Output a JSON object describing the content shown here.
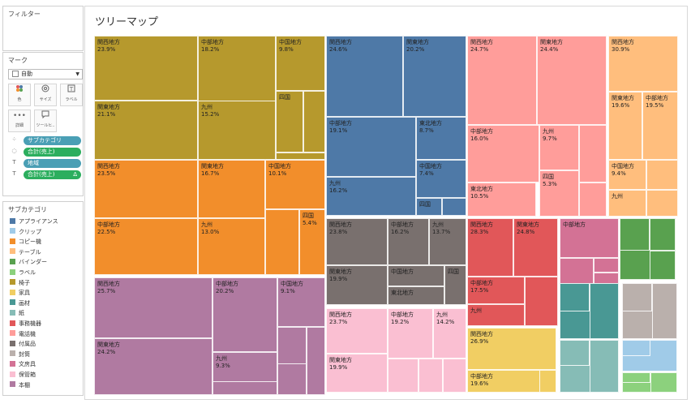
{
  "filters": {
    "title": "フィルター"
  },
  "marks": {
    "title": "マーク",
    "mark_type": "自動",
    "buttons": {
      "color": "色",
      "size": "サイズ",
      "label": "ラベル",
      "detail": "詳細",
      "tooltip": "ツールヒ.."
    },
    "pills": [
      {
        "label": "サブカテゴリ",
        "color": "#4a9fb5"
      },
      {
        "label": "合計(売上)",
        "color": "#2cae5e"
      },
      {
        "label": "地域",
        "color": "#4a9fb5"
      },
      {
        "label": "合計(売上)",
        "color": "#2cae5e"
      }
    ]
  },
  "legend": {
    "title": "サブカテゴリ",
    "items": [
      {
        "label": "アプライアンス",
        "color": "#4e79a7"
      },
      {
        "label": "クリップ",
        "color": "#a0cbe8"
      },
      {
        "label": "コピー機",
        "color": "#f28e2b"
      },
      {
        "label": "テーブル",
        "color": "#ffbe7d"
      },
      {
        "label": "バインダー",
        "color": "#59a14f"
      },
      {
        "label": "ラベル",
        "color": "#8cd17d"
      },
      {
        "label": "椅子",
        "color": "#b6992d"
      },
      {
        "label": "家具",
        "color": "#f1ce63"
      },
      {
        "label": "画材",
        "color": "#499894"
      },
      {
        "label": "紙",
        "color": "#86bcb6"
      },
      {
        "label": "事務機器",
        "color": "#e15759"
      },
      {
        "label": "電話機",
        "color": "#ff9d9a"
      },
      {
        "label": "付属品",
        "color": "#79706e"
      },
      {
        "label": "封筒",
        "color": "#bab0ac"
      },
      {
        "label": "文房具",
        "color": "#d37295"
      },
      {
        "label": "保管箱",
        "color": "#fabfd2"
      },
      {
        "label": "本棚",
        "color": "#b07aa1"
      }
    ]
  },
  "viz": {
    "title": "ツリーマップ",
    "cells": [
      {
        "name": "関西地方",
        "pct": "23.9%",
        "color": "#b6992d"
      },
      {
        "name": "関東地方",
        "pct": "21.1%",
        "color": "#b6992d"
      },
      {
        "name": "中部地方",
        "pct": "18.2%",
        "color": "#b6992d"
      },
      {
        "name": "九州",
        "pct": "15.2%",
        "color": "#b6992d"
      },
      {
        "name": "中国地方",
        "pct": "9.8%",
        "color": "#b6992d"
      },
      {
        "name": "四国",
        "pct": "",
        "color": "#b6992d"
      },
      {
        "name": "",
        "pct": "",
        "color": "#b6992d"
      },
      {
        "name": "",
        "pct": "",
        "color": "#b6992d"
      },
      {
        "name": "関西地方",
        "pct": "23.5%",
        "color": "#f28e2b"
      },
      {
        "name": "中部地方",
        "pct": "22.5%",
        "color": "#f28e2b"
      },
      {
        "name": "関東地方",
        "pct": "16.7%",
        "color": "#f28e2b"
      },
      {
        "name": "九州",
        "pct": "13.0%",
        "color": "#f28e2b"
      },
      {
        "name": "中国地方",
        "pct": "10.1%",
        "color": "#f28e2b"
      },
      {
        "name": "四国",
        "pct": "5.4%",
        "color": "#f28e2b"
      },
      {
        "name": "",
        "pct": "",
        "color": "#f28e2b"
      },
      {
        "name": "関西地方",
        "pct": "25.7%",
        "color": "#b07aa1"
      },
      {
        "name": "関東地方",
        "pct": "24.2%",
        "color": "#b07aa1"
      },
      {
        "name": "中部地方",
        "pct": "20.2%",
        "color": "#b07aa1"
      },
      {
        "name": "九州",
        "pct": "9.3%",
        "color": "#b07aa1"
      },
      {
        "name": "中国地方",
        "pct": "9.1%",
        "color": "#b07aa1"
      },
      {
        "name": "",
        "pct": "",
        "color": "#b07aa1"
      },
      {
        "name": "",
        "pct": "",
        "color": "#b07aa1"
      },
      {
        "name": "",
        "pct": "",
        "color": "#b07aa1"
      },
      {
        "name": "",
        "pct": "",
        "color": "#b07aa1"
      },
      {
        "name": "関西地方",
        "pct": "24.6%",
        "color": "#4e79a7"
      },
      {
        "name": "関東地方",
        "pct": "20.2%",
        "color": "#4e79a7"
      },
      {
        "name": "中部地方",
        "pct": "19.1%",
        "color": "#4e79a7"
      },
      {
        "name": "東北地方",
        "pct": "8.7%",
        "color": "#4e79a7"
      },
      {
        "name": "九州",
        "pct": "16.2%",
        "color": "#4e79a7"
      },
      {
        "name": "中国地方",
        "pct": "7.4%",
        "color": "#4e79a7"
      },
      {
        "name": "四国",
        "pct": "",
        "color": "#4e79a7"
      },
      {
        "name": "",
        "pct": "",
        "color": "#4e79a7"
      },
      {
        "name": "関西地方",
        "pct": "23.8%",
        "color": "#79706e"
      },
      {
        "name": "関東地方",
        "pct": "19.9%",
        "color": "#79706e"
      },
      {
        "name": "中部地方",
        "pct": "16.2%",
        "color": "#79706e"
      },
      {
        "name": "九州",
        "pct": "13.7%",
        "color": "#79706e"
      },
      {
        "name": "中国地方",
        "pct": "",
        "color": "#79706e"
      },
      {
        "name": "四国",
        "pct": "",
        "color": "#79706e"
      },
      {
        "name": "東北地方",
        "pct": "",
        "color": "#79706e"
      },
      {
        "name": "",
        "pct": "",
        "color": "#79706e"
      },
      {
        "name": "関西地方",
        "pct": "23.7%",
        "color": "#fabfd2"
      },
      {
        "name": "関東地方",
        "pct": "19.9%",
        "color": "#fabfd2"
      },
      {
        "name": "中部地方",
        "pct": "19.2%",
        "color": "#fabfd2"
      },
      {
        "name": "九州",
        "pct": "14.2%",
        "color": "#fabfd2"
      },
      {
        "name": "",
        "pct": "",
        "color": "#fabfd2"
      },
      {
        "name": "",
        "pct": "",
        "color": "#fabfd2"
      },
      {
        "name": "",
        "pct": "",
        "color": "#fabfd2"
      },
      {
        "name": "関西地方",
        "pct": "24.7%",
        "color": "#ff9d9a"
      },
      {
        "name": "関東地方",
        "pct": "24.4%",
        "color": "#ff9d9a"
      },
      {
        "name": "中部地方",
        "pct": "16.0%",
        "color": "#ff9d9a"
      },
      {
        "name": "九州",
        "pct": "9.7%",
        "color": "#ff9d9a"
      },
      {
        "name": "東北地方",
        "pct": "10.5%",
        "color": "#ff9d9a"
      },
      {
        "name": "四国",
        "pct": "5.3%",
        "color": "#ff9d9a"
      },
      {
        "name": "",
        "pct": "",
        "color": "#ff9d9a"
      },
      {
        "name": "",
        "pct": "",
        "color": "#ff9d9a"
      },
      {
        "name": "関西地方",
        "pct": "30.9%",
        "color": "#ffbe7d"
      },
      {
        "name": "関東地方",
        "pct": "19.6%",
        "color": "#ffbe7d"
      },
      {
        "name": "中部地方",
        "pct": "19.5%",
        "color": "#ffbe7d"
      },
      {
        "name": "中国地方",
        "pct": "9.4%",
        "color": "#ffbe7d"
      },
      {
        "name": "九州",
        "pct": "",
        "color": "#ffbe7d"
      },
      {
        "name": "",
        "pct": "",
        "color": "#ffbe7d"
      },
      {
        "name": "",
        "pct": "",
        "color": "#ffbe7d"
      },
      {
        "name": "関西地方",
        "pct": "28.3%",
        "color": "#e15759"
      },
      {
        "name": "関東地方",
        "pct": "24.8%",
        "color": "#e15759"
      },
      {
        "name": "中部地方",
        "pct": "17.5%",
        "color": "#e15759"
      },
      {
        "name": "九州",
        "pct": "",
        "color": "#e15759"
      },
      {
        "name": "",
        "pct": "",
        "color": "#e15759"
      },
      {
        "name": "",
        "pct": "",
        "color": "#e15759"
      },
      {
        "name": "関西地方",
        "pct": "26.9%",
        "color": "#f1ce63"
      },
      {
        "name": "中部地方",
        "pct": "19.6%",
        "color": "#f1ce63"
      },
      {
        "name": "",
        "pct": "",
        "color": "#f1ce63"
      },
      {
        "name": "",
        "pct": "",
        "color": "#f1ce63"
      },
      {
        "name": "中部地方",
        "pct": "",
        "color": "#d37295"
      },
      {
        "name": "",
        "pct": "",
        "color": "#d37295"
      },
      {
        "name": "",
        "pct": "",
        "color": "#d37295"
      },
      {
        "name": "",
        "pct": "",
        "color": "#d37295"
      },
      {
        "name": "",
        "pct": "",
        "color": "#59a14f"
      },
      {
        "name": "",
        "pct": "",
        "color": "#59a14f"
      },
      {
        "name": "",
        "pct": "",
        "color": "#59a14f"
      },
      {
        "name": "",
        "pct": "",
        "color": "#59a14f"
      },
      {
        "name": "",
        "pct": "",
        "color": "#499894"
      },
      {
        "name": "",
        "pct": "",
        "color": "#499894"
      },
      {
        "name": "",
        "pct": "",
        "color": "#499894"
      },
      {
        "name": "",
        "pct": "",
        "color": "#bab0ac"
      },
      {
        "name": "",
        "pct": "",
        "color": "#bab0ac"
      },
      {
        "name": "",
        "pct": "",
        "color": "#bab0ac"
      },
      {
        "name": "",
        "pct": "",
        "color": "#86bcb6"
      },
      {
        "name": "",
        "pct": "",
        "color": "#86bcb6"
      },
      {
        "name": "",
        "pct": "",
        "color": "#86bcb6"
      },
      {
        "name": "",
        "pct": "",
        "color": "#a0cbe8"
      },
      {
        "name": "",
        "pct": "",
        "color": "#a0cbe8"
      },
      {
        "name": "",
        "pct": "",
        "color": "#8cd17d"
      },
      {
        "name": "",
        "pct": "",
        "color": "#8cd17d"
      },
      {
        "name": "",
        "pct": "",
        "color": "#8cd17d"
      }
    ]
  }
}
